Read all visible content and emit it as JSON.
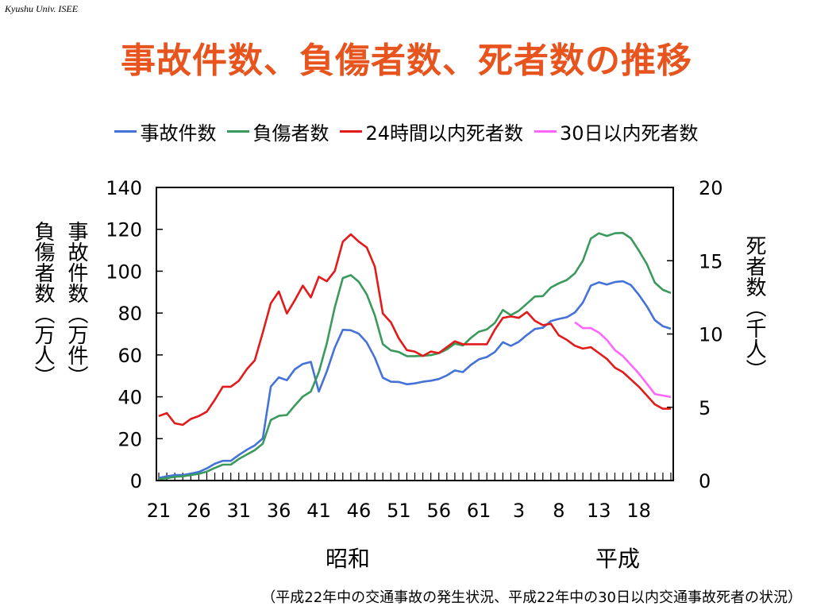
{
  "header_note": "Kyushu Univ. ISEE",
  "title": "事故件数、負傷者数、死者数の推移",
  "footnote": "（平成22年中の交通事故の発生状況、平成22年中の30日以内交通事故死者の状況）",
  "colors": {
    "title": "#e8541e",
    "accidents": "#4472d9",
    "injured": "#3a9a5c",
    "deaths24": "#e31a1a",
    "deaths30": "#ff66ff"
  },
  "chart_data": {
    "type": "line",
    "title": "事故件数、負傷者数、死者数の推移",
    "x_tick_labels": [
      "21",
      "26",
      "31",
      "36",
      "41",
      "46",
      "51",
      "56",
      "61",
      "3",
      "8",
      "13",
      "18"
    ],
    "era_labels": [
      "昭和",
      "平成"
    ],
    "left_axis": {
      "label_col1": "事故件数（万件）",
      "label_col2": "負傷者数（万人）",
      "ylim": [
        0,
        140
      ],
      "ticks": [
        "0",
        "20",
        "40",
        "60",
        "80",
        "100",
        "120",
        "140"
      ]
    },
    "right_axis": {
      "label": "死者数（千人）",
      "ylim": [
        0,
        20
      ],
      "ticks": [
        "0",
        "5",
        "10",
        "15",
        "20"
      ]
    },
    "grid": false,
    "legend_position": "top",
    "years": [
      1946,
      1947,
      1948,
      1949,
      1950,
      1951,
      1952,
      1953,
      1954,
      1955,
      1956,
      1957,
      1958,
      1959,
      1960,
      1961,
      1962,
      1963,
      1964,
      1965,
      1966,
      1967,
      1968,
      1969,
      1970,
      1971,
      1972,
      1973,
      1974,
      1975,
      1976,
      1977,
      1978,
      1979,
      1980,
      1981,
      1982,
      1983,
      1984,
      1985,
      1986,
      1987,
      1988,
      1989,
      1990,
      1991,
      1992,
      1993,
      1994,
      1995,
      1996,
      1997,
      1998,
      1999,
      2000,
      2001,
      2002,
      2003,
      2004,
      2005,
      2006,
      2007,
      2008,
      2009,
      2010
    ],
    "series": [
      {
        "name": "事故件数",
        "axis": "left",
        "values": [
          1.2,
          2.0,
          2.6,
          2.6,
          3.3,
          4.1,
          5.8,
          8.0,
          9.4,
          9.4,
          12.2,
          14.7,
          16.8,
          20.1,
          44.9,
          49.3,
          47.9,
          53.1,
          55.7,
          56.7,
          42.5,
          52.1,
          63.5,
          72.0,
          71.8,
          70.1,
          65.9,
          58.7,
          49.1,
          47.2,
          47.1,
          46.0,
          46.4,
          47.2,
          47.7,
          48.5,
          50.2,
          52.6,
          51.8,
          55.2,
          57.9,
          59.0,
          61.4,
          66.1,
          64.3,
          66.3,
          69.5,
          72.4,
          73.0,
          76.2,
          77.2,
          78.0,
          80.3,
          85.0,
          93.1,
          94.7,
          93.6,
          94.8,
          95.2,
          93.4,
          88.7,
          83.2,
          76.6,
          73.7,
          72.5
        ]
      },
      {
        "name": "負傷者数",
        "axis": "left",
        "values": [
          0.7,
          1.1,
          1.8,
          2.0,
          2.6,
          3.2,
          4.3,
          6.0,
          7.6,
          7.6,
          10.3,
          12.4,
          14.5,
          17.6,
          28.9,
          30.9,
          31.3,
          35.8,
          40.1,
          42.5,
          51.8,
          65.5,
          82.8,
          96.7,
          98.1,
          94.9,
          88.9,
          78.9,
          65.1,
          62.2,
          61.4,
          59.4,
          59.4,
          59.6,
          59.9,
          60.8,
          62.6,
          65.4,
          64.5,
          68.1,
          71.1,
          72.2,
          75.3,
          81.5,
          79.0,
          81.1,
          84.5,
          87.9,
          88.1,
          92.2,
          94.2,
          95.8,
          99.0,
          105.0,
          115.6,
          118.1,
          116.8,
          118.1,
          118.3,
          115.7,
          109.8,
          103.4,
          94.5,
          91.1,
          89.6
        ]
      },
      {
        "name": "24時間以内死者数",
        "axis": "right",
        "values": [
          4.4,
          4.6,
          3.9,
          3.8,
          4.2,
          4.4,
          4.7,
          5.5,
          6.4,
          6.4,
          6.8,
          7.6,
          8.2,
          10.1,
          12.1,
          12.9,
          11.4,
          12.3,
          13.3,
          12.5,
          13.9,
          13.6,
          14.3,
          16.3,
          16.8,
          16.3,
          15.9,
          14.6,
          11.4,
          10.8,
          9.7,
          8.9,
          8.8,
          8.5,
          8.8,
          8.7,
          9.1,
          9.5,
          9.3,
          9.3,
          9.3,
          9.3,
          10.3,
          11.1,
          11.2,
          11.1,
          11.5,
          10.9,
          10.6,
          10.7,
          9.9,
          9.6,
          9.2,
          9.0,
          9.1,
          8.7,
          8.3,
          7.7,
          7.4,
          6.9,
          6.4,
          5.8,
          5.2,
          4.9,
          4.9
        ]
      },
      {
        "name": "30日以内死者数",
        "axis": "right",
        "values": [
          null,
          null,
          null,
          null,
          null,
          null,
          null,
          null,
          null,
          null,
          null,
          null,
          null,
          null,
          null,
          null,
          null,
          null,
          null,
          null,
          null,
          null,
          null,
          null,
          null,
          null,
          null,
          null,
          null,
          null,
          null,
          null,
          null,
          null,
          null,
          null,
          null,
          null,
          null,
          null,
          null,
          null,
          null,
          null,
          null,
          null,
          null,
          null,
          null,
          null,
          null,
          null,
          10.8,
          10.4,
          10.4,
          10.1,
          9.6,
          8.9,
          8.5,
          7.9,
          7.3,
          6.6,
          5.9,
          5.8,
          5.7
        ]
      }
    ]
  }
}
